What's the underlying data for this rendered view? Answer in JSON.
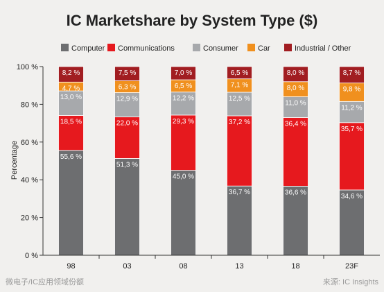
{
  "chart_data": {
    "type": "bar",
    "stacked": true,
    "title": "IC Marketshare by System Type ($)",
    "xlabel": "",
    "ylabel": "Percentage",
    "ylim": [
      0,
      100
    ],
    "yticks": [
      0,
      20,
      40,
      60,
      80,
      100
    ],
    "ytick_labels": [
      "0 %",
      "20 %",
      "40 %",
      "60 %",
      "80 %",
      "100 %"
    ],
    "categories": [
      "98",
      "03",
      "08",
      "13",
      "18",
      "23F"
    ],
    "legend_position": "top",
    "grid": false,
    "series": [
      {
        "name": "Computer",
        "color": "#6d6e70",
        "values": [
          55.6,
          51.3,
          45.0,
          36.7,
          36.6,
          34.6
        ],
        "labels": [
          "55,6 %",
          "51,3 %",
          "45,0 %",
          "36,7 %",
          "36,6 %",
          "34,6 %"
        ]
      },
      {
        "name": "Communications",
        "color": "#e6191e",
        "values": [
          18.5,
          22.0,
          29.3,
          37.2,
          36.4,
          35.7
        ],
        "labels": [
          "18,5 %",
          "22,0 %",
          "29,3 %",
          "37,2 %",
          "36,4 %",
          "35,7 %"
        ]
      },
      {
        "name": "Consumer",
        "color": "#a7a9ac",
        "values": [
          13.0,
          12.9,
          12.2,
          12.5,
          11.0,
          11.2
        ],
        "labels": [
          "13,0 %",
          "12,9 %",
          "12,2 %",
          "12,5 %",
          "11,0 %",
          "11,2 %"
        ]
      },
      {
        "name": "Car",
        "color": "#f0901e",
        "values": [
          4.7,
          6.3,
          6.5,
          7.1,
          8.0,
          9.8
        ],
        "labels": [
          "4,7 %",
          "6,3 %",
          "6,5 %",
          "7,1 %",
          "8,0 %",
          "9,8 %"
        ]
      },
      {
        "name": "Industrial / Other",
        "color": "#a11d21",
        "values": [
          8.2,
          7.5,
          7.0,
          6.5,
          8.0,
          8.7
        ],
        "labels": [
          "8,2 %",
          "7,5 %",
          "7,0 %",
          "6,5 %",
          "8,0 %",
          "8,7 %"
        ]
      }
    ]
  },
  "footer": {
    "left": "微电子/IC应用领域份额",
    "right": "来源: IC Insights"
  }
}
